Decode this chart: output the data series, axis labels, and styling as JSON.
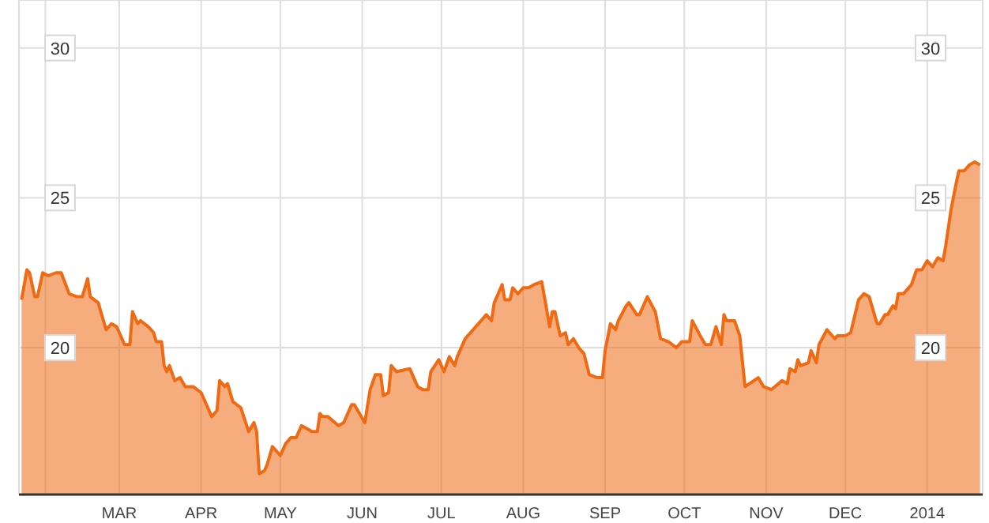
{
  "chart_data": {
    "type": "area",
    "x": [
      "2013-01-23",
      "2013-01-25",
      "2013-01-26",
      "2013-01-28",
      "2013-01-29",
      "2013-01-31",
      "2013-02-02",
      "2013-02-05",
      "2013-02-07",
      "2013-02-10",
      "2013-02-13",
      "2013-02-15",
      "2013-02-17",
      "2013-02-18",
      "2013-02-21",
      "2013-02-24",
      "2013-02-26",
      "2013-02-28",
      "2013-03-03",
      "2013-03-05",
      "2013-03-06",
      "2013-03-08",
      "2013-03-09",
      "2013-03-12",
      "2013-03-14",
      "2013-03-15",
      "2013-03-17",
      "2013-03-18",
      "2013-03-19",
      "2013-03-20",
      "2013-03-22",
      "2013-03-24",
      "2013-03-26",
      "2013-03-29",
      "2013-04-01",
      "2013-04-02",
      "2013-04-05",
      "2013-04-07",
      "2013-04-08",
      "2013-04-10",
      "2013-04-11",
      "2013-04-13",
      "2013-04-16",
      "2013-04-19",
      "2013-04-21",
      "2013-04-22",
      "2013-04-23",
      "2013-04-25",
      "2013-04-26",
      "2013-04-28",
      "2013-05-01",
      "2013-05-03",
      "2013-05-05",
      "2013-05-07",
      "2013-05-09",
      "2013-05-13",
      "2013-05-15",
      "2013-05-16",
      "2013-05-17",
      "2013-05-19",
      "2013-05-23",
      "2013-05-25",
      "2013-05-28",
      "2013-05-29",
      "2013-06-02",
      "2013-06-04",
      "2013-06-06",
      "2013-06-08",
      "2013-06-09",
      "2013-06-11",
      "2013-06-12",
      "2013-06-14",
      "2013-06-19",
      "2013-06-22",
      "2013-06-24",
      "2013-06-26",
      "2013-06-27",
      "2013-06-30",
      "2013-07-02",
      "2013-07-04",
      "2013-07-06",
      "2013-07-07",
      "2013-07-10",
      "2013-07-13",
      "2013-07-16",
      "2013-07-18",
      "2013-07-20",
      "2013-07-21",
      "2013-07-24",
      "2013-07-25",
      "2013-07-27",
      "2013-07-28",
      "2013-07-30",
      "2013-08-01",
      "2013-08-03",
      "2013-08-05",
      "2013-08-08",
      "2013-08-11",
      "2013-08-12",
      "2013-08-13",
      "2013-08-15",
      "2013-08-17",
      "2013-08-18",
      "2013-08-20",
      "2013-08-22",
      "2013-08-24",
      "2013-08-26",
      "2013-08-29",
      "2013-08-31",
      "2013-09-01",
      "2013-09-03",
      "2013-09-05",
      "2013-09-06",
      "2013-09-09",
      "2013-09-10",
      "2013-09-13",
      "2013-09-14",
      "2013-09-17",
      "2013-09-20",
      "2013-09-22",
      "2013-09-25",
      "2013-09-28",
      "2013-09-30",
      "2013-10-03",
      "2013-10-04",
      "2013-10-07",
      "2013-10-09",
      "2013-10-11",
      "2013-10-13",
      "2013-10-15",
      "2013-10-16",
      "2013-10-17",
      "2013-10-20",
      "2013-10-22",
      "2013-10-24",
      "2013-10-29",
      "2013-10-31",
      "2013-11-03",
      "2013-11-07",
      "2013-11-09",
      "2013-11-10",
      "2013-11-12",
      "2013-11-13",
      "2013-11-14",
      "2013-11-17",
      "2013-11-18",
      "2013-11-20",
      "2013-11-21",
      "2013-11-24",
      "2013-11-27",
      "2013-11-28",
      "2013-12-01",
      "2013-12-03",
      "2013-12-06",
      "2013-12-08",
      "2013-12-10",
      "2013-12-12",
      "2013-12-13",
      "2013-12-14",
      "2013-12-16",
      "2013-12-17",
      "2013-12-19",
      "2013-12-20",
      "2013-12-21",
      "2013-12-23",
      "2013-12-26",
      "2013-12-28",
      "2013-12-30",
      "2014-01-01",
      "2014-01-03",
      "2014-01-05",
      "2014-01-07",
      "2014-01-08",
      "2014-01-10",
      "2014-01-12",
      "2014-01-13",
      "2014-01-15",
      "2014-01-17",
      "2014-01-19",
      "2014-01-21"
    ],
    "series": [
      {
        "color": "#ef6a12",
        "values": [
          21.6,
          22.6,
          22.5,
          21.7,
          21.7,
          22.5,
          22.4,
          22.5,
          22.5,
          21.8,
          21.7,
          21.7,
          22.3,
          21.7,
          21.5,
          20.6,
          20.8,
          20.7,
          20.1,
          20.1,
          21.2,
          20.8,
          20.9,
          20.7,
          20.5,
          20.2,
          20.2,
          19.4,
          19.2,
          19.4,
          18.9,
          19.0,
          18.7,
          18.7,
          18.5,
          18.3,
          17.7,
          17.9,
          18.9,
          18.7,
          18.8,
          18.2,
          18.0,
          17.2,
          17.5,
          17.2,
          15.8,
          15.9,
          16.1,
          16.7,
          16.4,
          16.8,
          17.0,
          17.0,
          17.4,
          17.2,
          17.2,
          17.8,
          17.7,
          17.7,
          17.4,
          17.5,
          18.1,
          18.1,
          17.5,
          18.6,
          19.1,
          19.1,
          18.4,
          18.5,
          19.4,
          19.2,
          19.3,
          18.7,
          18.6,
          18.6,
          19.2,
          19.6,
          19.2,
          19.7,
          19.4,
          19.7,
          20.3,
          20.6,
          20.9,
          21.1,
          20.9,
          21.5,
          22.1,
          21.6,
          21.6,
          22.0,
          21.8,
          22.0,
          22.0,
          22.1,
          22.2,
          20.7,
          21.2,
          21.2,
          20.4,
          20.5,
          20.1,
          20.3,
          20.0,
          19.8,
          19.1,
          19.0,
          19.0,
          19.9,
          20.8,
          20.6,
          20.9,
          21.4,
          21.5,
          21.1,
          21.1,
          21.7,
          21.2,
          20.3,
          20.2,
          20.0,
          20.2,
          20.2,
          20.9,
          20.4,
          20.1,
          20.1,
          20.7,
          20.1,
          21.1,
          20.9,
          20.9,
          20.4,
          18.7,
          19.0,
          18.7,
          18.6,
          18.9,
          18.8,
          19.3,
          19.2,
          19.6,
          19.4,
          19.5,
          19.9,
          19.5,
          20.1,
          20.6,
          20.3,
          20.4,
          20.4,
          20.5,
          21.6,
          21.8,
          21.7,
          21.1,
          20.8,
          20.8,
          21.1,
          21.1,
          21.4,
          21.3,
          21.8,
          21.8,
          22.1,
          22.6,
          22.6,
          22.9,
          22.7,
          23.0,
          22.9,
          23.4,
          24.6,
          25.5,
          25.9,
          25.9,
          26.1,
          26.2,
          26.1
        ]
      }
    ],
    "xlim": [
      "2013-01-22",
      "2014-01-22"
    ],
    "xticks": [
      {
        "value": "2013-02-01",
        "label": null
      },
      {
        "value": "2013-03-01",
        "label": "MAR"
      },
      {
        "value": "2013-04-01",
        "label": "APR"
      },
      {
        "value": "2013-05-01",
        "label": "MAY"
      },
      {
        "value": "2013-06-01",
        "label": "JUN"
      },
      {
        "value": "2013-07-01",
        "label": "JUL"
      },
      {
        "value": "2013-08-01",
        "label": "AUG"
      },
      {
        "value": "2013-09-01",
        "label": "SEP"
      },
      {
        "value": "2013-10-01",
        "label": "OCT"
      },
      {
        "value": "2013-11-01",
        "label": "NOV"
      },
      {
        "value": "2013-12-01",
        "label": "DEC"
      },
      {
        "value": "2014-01-01",
        "label": "2014"
      }
    ],
    "ylim": [
      15.1,
      31.6
    ],
    "yticks": [
      20,
      25,
      30
    ],
    "y2lim": [
      15.1,
      31.6
    ],
    "y2ticks": [
      20,
      25,
      30
    ],
    "grid": true,
    "legend": false
  }
}
